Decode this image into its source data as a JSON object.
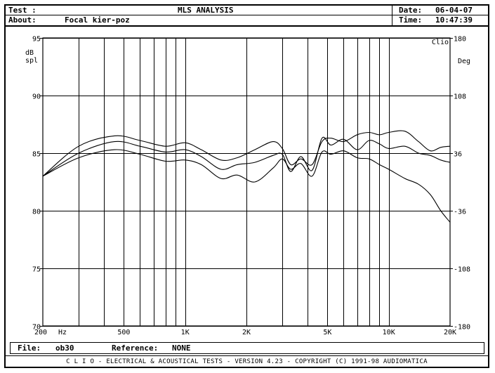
{
  "header": {
    "test_label": "Test :",
    "title": "MLS ANALYSIS",
    "date_label": "Date:",
    "date_value": "06-04-07",
    "about_label": "About:",
    "about_value": "Focal kier-poz",
    "time_label": "Time:",
    "time_value": "10:47:39"
  },
  "file_bar": {
    "file_label": "File:",
    "file_value": "ob30",
    "reference_label": "Reference:",
    "reference_value": "NONE"
  },
  "footer_text": "C L I O  -  ELECTRICAL & ACOUSTICAL TESTS  -  VERSION 4.23  -  COPYRIGHT (C) 1991-98 AUDIOMATICA",
  "chart_data": {
    "type": "line",
    "x_scale": "log",
    "xlim": [
      200,
      20000
    ],
    "ylim": [
      70,
      95
    ],
    "y2lim": [
      -180,
      180
    ],
    "ylabel": "dB spl",
    "y2label": "Deg",
    "corner_label": "Clio",
    "x_unit_label": "Hz",
    "grid": true,
    "x_ticks": [
      {
        "value": 200,
        "label": "200"
      },
      {
        "value": 500,
        "label": "500"
      },
      {
        "value": 1000,
        "label": "1K"
      },
      {
        "value": 2000,
        "label": "2K"
      },
      {
        "value": 5000,
        "label": "5K"
      },
      {
        "value": 10000,
        "label": "10K"
      },
      {
        "value": 20000,
        "label": "20K"
      }
    ],
    "y_ticks": [
      95,
      90,
      85,
      80,
      75,
      70
    ],
    "y2_ticks": [
      180,
      108,
      36,
      -36,
      -108,
      -180
    ],
    "series": [
      {
        "values": [
          [
            200,
            83.0
          ],
          [
            300,
            85.6
          ],
          [
            450,
            86.5
          ],
          [
            600,
            86.1
          ],
          [
            800,
            85.6
          ],
          [
            1000,
            85.9
          ],
          [
            1200,
            85.3
          ],
          [
            1500,
            84.4
          ],
          [
            1800,
            84.6
          ],
          [
            2200,
            85.3
          ],
          [
            2700,
            86.0
          ],
          [
            3000,
            85.4
          ],
          [
            3300,
            84.0
          ],
          [
            3700,
            84.5
          ],
          [
            4200,
            84.0
          ],
          [
            4700,
            86.0
          ],
          [
            5200,
            86.3
          ],
          [
            6000,
            86.0
          ],
          [
            7000,
            86.6
          ],
          [
            8000,
            86.8
          ],
          [
            9000,
            86.6
          ],
          [
            10000,
            86.8
          ],
          [
            12000,
            86.9
          ],
          [
            14000,
            86.0
          ],
          [
            16000,
            85.2
          ],
          [
            18000,
            85.5
          ],
          [
            20000,
            85.6
          ]
        ]
      },
      {
        "values": [
          [
            200,
            83.0
          ],
          [
            300,
            85.0
          ],
          [
            450,
            86.0
          ],
          [
            600,
            85.6
          ],
          [
            800,
            85.1
          ],
          [
            1000,
            85.3
          ],
          [
            1200,
            84.7
          ],
          [
            1500,
            83.6
          ],
          [
            1800,
            84.0
          ],
          [
            2200,
            84.2
          ],
          [
            2700,
            84.8
          ],
          [
            3000,
            84.9
          ],
          [
            3300,
            83.4
          ],
          [
            3700,
            84.7
          ],
          [
            4200,
            83.5
          ],
          [
            4700,
            86.3
          ],
          [
            5200,
            85.7
          ],
          [
            6000,
            86.2
          ],
          [
            7000,
            85.3
          ],
          [
            8000,
            86.1
          ],
          [
            9000,
            85.8
          ],
          [
            10000,
            85.4
          ],
          [
            12000,
            85.6
          ],
          [
            14000,
            85.0
          ],
          [
            16000,
            84.8
          ],
          [
            18000,
            84.4
          ],
          [
            20000,
            84.2
          ]
        ]
      },
      {
        "values": [
          [
            200,
            83.0
          ],
          [
            300,
            84.6
          ],
          [
            450,
            85.3
          ],
          [
            600,
            84.9
          ],
          [
            800,
            84.3
          ],
          [
            1000,
            84.4
          ],
          [
            1200,
            84.0
          ],
          [
            1500,
            82.8
          ],
          [
            1800,
            83.1
          ],
          [
            2200,
            82.5
          ],
          [
            2700,
            83.7
          ],
          [
            3000,
            84.5
          ],
          [
            3300,
            83.6
          ],
          [
            3700,
            84.1
          ],
          [
            4200,
            83.0
          ],
          [
            4700,
            85.1
          ],
          [
            5200,
            84.9
          ],
          [
            6000,
            85.2
          ],
          [
            7000,
            84.6
          ],
          [
            8000,
            84.5
          ],
          [
            9000,
            84.0
          ],
          [
            10000,
            83.6
          ],
          [
            12000,
            82.8
          ],
          [
            14000,
            82.3
          ],
          [
            16000,
            81.4
          ],
          [
            18000,
            80.0
          ],
          [
            20000,
            79.0
          ]
        ]
      }
    ]
  }
}
